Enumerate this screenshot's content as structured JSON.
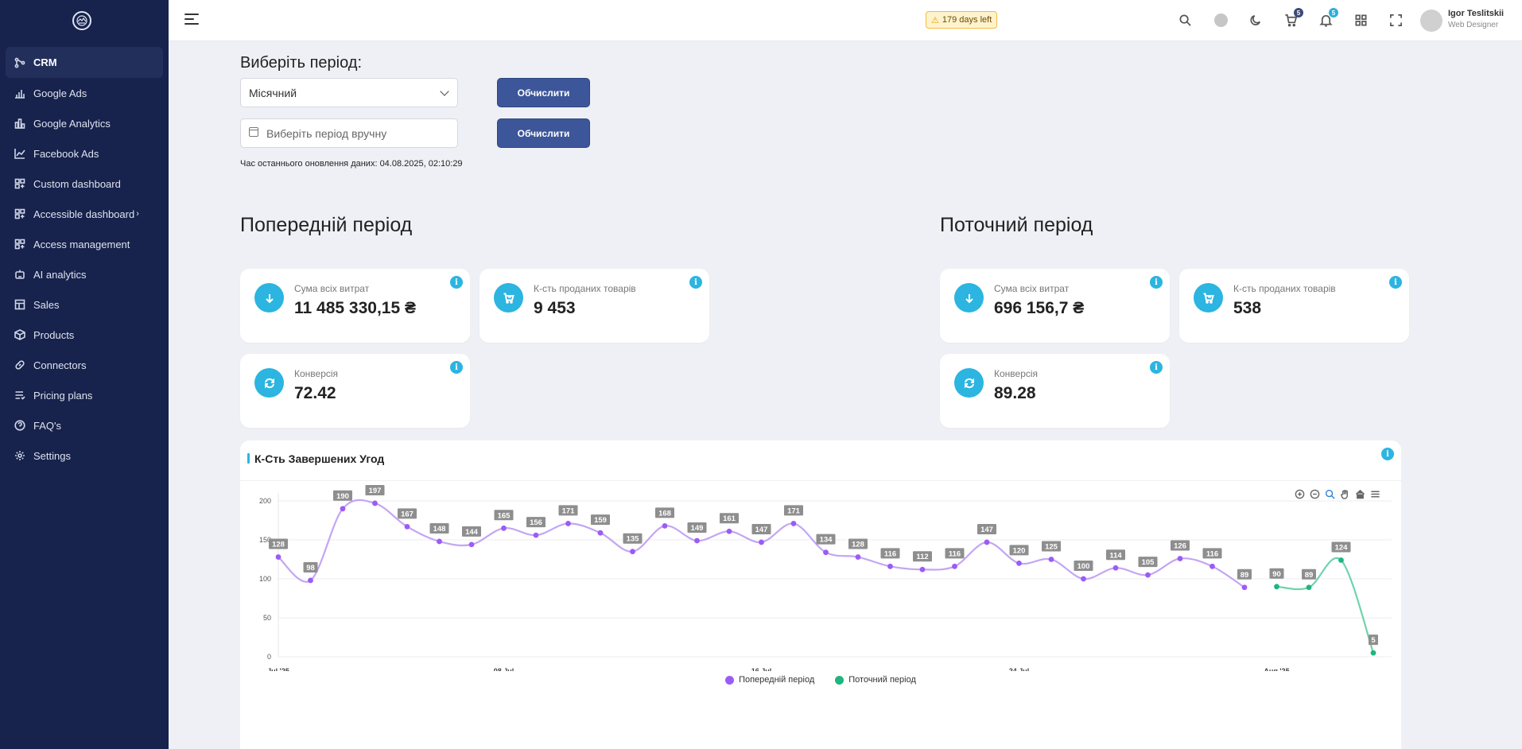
{
  "sidebar": {
    "items": [
      {
        "label": "CRM",
        "icon": "crm-icon"
      },
      {
        "label": "Google Ads",
        "icon": "bar-chart-icon"
      },
      {
        "label": "Google Analytics",
        "icon": "analytics-icon"
      },
      {
        "label": "Facebook Ads",
        "icon": "line-chart-icon"
      },
      {
        "label": "Custom dashboard",
        "icon": "dashboard-icon"
      },
      {
        "label": "Accessible dashboard",
        "icon": "dashboard-icon"
      },
      {
        "label": "Access management",
        "icon": "dashboard-icon"
      },
      {
        "label": "AI analytics",
        "icon": "robot-icon"
      },
      {
        "label": "Sales",
        "icon": "table-icon"
      },
      {
        "label": "Products",
        "icon": "box-icon"
      },
      {
        "label": "Connectors",
        "icon": "link-icon"
      },
      {
        "label": "Pricing plans",
        "icon": "list-icon"
      },
      {
        "label": "FAQ's",
        "icon": "help-icon"
      },
      {
        "label": "Settings",
        "icon": "gear-icon"
      }
    ],
    "accessible_chevron": "›"
  },
  "header": {
    "trial_text": "179 days left",
    "cart_count": "5",
    "notif_count": "5",
    "user_name": "Igor Teslitskii",
    "user_role": "Web Designer"
  },
  "form": {
    "title": "Виберіть період:",
    "select_value": "Місячний",
    "date_placeholder": "Виберіть  період вручну",
    "calc_label": "Обчислити",
    "update_time": "Час останнього оновлення даних: 04.08.2025, 02:10:29"
  },
  "previous": {
    "title": "Попередній період",
    "spend_label": "Сума всіх витрат",
    "spend_value": "11 485 330,15 ₴",
    "sold_label": "К-сть проданих товарів",
    "sold_value": "9 453",
    "conv_label": "Конверсія",
    "conv_value": "72.42"
  },
  "current": {
    "title": "Поточний період",
    "spend_label": "Сума всіх витрат",
    "spend_value": "696 156,7 ₴",
    "sold_label": "К-сть проданих товарів",
    "sold_value": "538",
    "conv_label": "Конверсія",
    "conv_value": "89.28"
  },
  "info_glyph": "i",
  "chart_data": {
    "type": "line",
    "title": "К-Сть Завершених Угод",
    "ylim": [
      0,
      200
    ],
    "y_ticks": [
      0,
      50,
      100,
      150,
      200
    ],
    "x_tick_labels": [
      "Jul '25",
      "08 Jul",
      "16 Jul",
      "24 Jul",
      "Aug '25"
    ],
    "x_tick_days": [
      1,
      8,
      16,
      24,
      32
    ],
    "series": [
      {
        "name": "Попередній період",
        "color": "#9b5cf6",
        "line_color": "#c3a6f3",
        "start_day": 1,
        "values": [
          128,
          98,
          190,
          197,
          167,
          148,
          144,
          165,
          156,
          171,
          159,
          135,
          168,
          149,
          161,
          147,
          171,
          134,
          128,
          116,
          112,
          116,
          147,
          120,
          125,
          100,
          114,
          105,
          126,
          116,
          89
        ]
      },
      {
        "name": "Поточний період",
        "color": "#1fb57e",
        "line_color": "#6fd3ab",
        "start_day": 32,
        "values": [
          90,
          89,
          124,
          5
        ]
      }
    ]
  }
}
